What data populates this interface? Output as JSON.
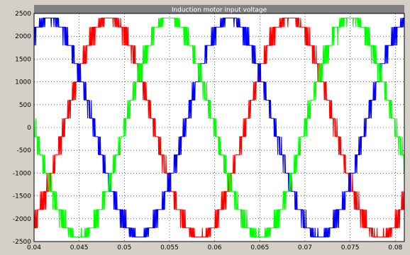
{
  "chart_data": {
    "type": "line",
    "title": "Induction motor input voltage",
    "xlabel": "",
    "ylabel": "",
    "xlim": [
      0.04,
      0.081
    ],
    "ylim": [
      -2500,
      2500
    ],
    "grid": true,
    "x_ticks": [
      "0.04",
      "0.045",
      "0.05",
      "0.055",
      "0.06",
      "0.065",
      "0.07",
      "0.075",
      "0.08"
    ],
    "y_ticks": [
      "2500",
      "2000",
      "1500",
      "1000",
      "500",
      "0",
      "-500",
      "-1000",
      "-1500",
      "-2000",
      "-2500"
    ],
    "frequency_hz": 50,
    "levels": [
      -2400,
      -2200,
      -1800,
      -1400,
      -1000,
      -600,
      -200,
      200,
      600,
      1000,
      1400,
      1800,
      2200,
      2400
    ],
    "series": [
      {
        "peak_volts": 2400,
        "phase_deg": -60,
        "color": "#ff0000"
      },
      {
        "peak_volts": 2400,
        "phase_deg": 60,
        "color": "#0000ff"
      },
      {
        "peak_volts": 2400,
        "phase_deg": 180,
        "color": "#00ff00"
      }
    ],
    "colors": {
      "frame": "#d4d0c8",
      "plot_bg": "#ffffff",
      "title_bar": "#808080",
      "title_text": "#ffffff",
      "grid": "#000000"
    }
  }
}
